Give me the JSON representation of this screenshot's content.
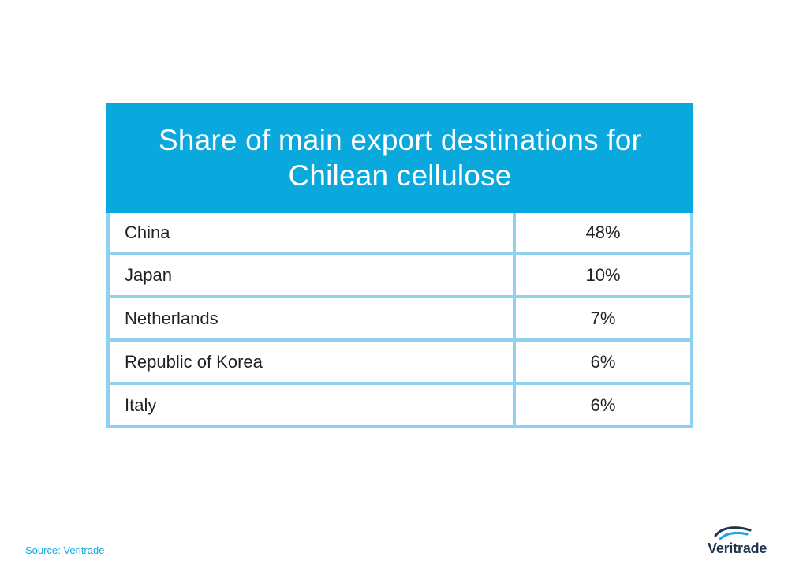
{
  "chart_data": {
    "type": "table",
    "title": "Share of main export destinations for Chilean cellulose",
    "columns": [
      "",
      ""
    ],
    "rows": [
      {
        "country": "China",
        "share": "48%"
      },
      {
        "country": "Japan",
        "share": "10%"
      },
      {
        "country": "Netherlands",
        "share": "7%"
      },
      {
        "country": "Republic of Korea",
        "share": "6%"
      },
      {
        "country": "Italy",
        "share": "6%"
      }
    ],
    "grid": true
  },
  "footer": {
    "source": "Source: Veritrade"
  },
  "logo": {
    "text": "Veritrade"
  },
  "colors": {
    "header_bg": "#09a8dd",
    "grid_line": "#8fd1ef",
    "source_text": "#16a8de",
    "logo_text": "#1c3550"
  }
}
